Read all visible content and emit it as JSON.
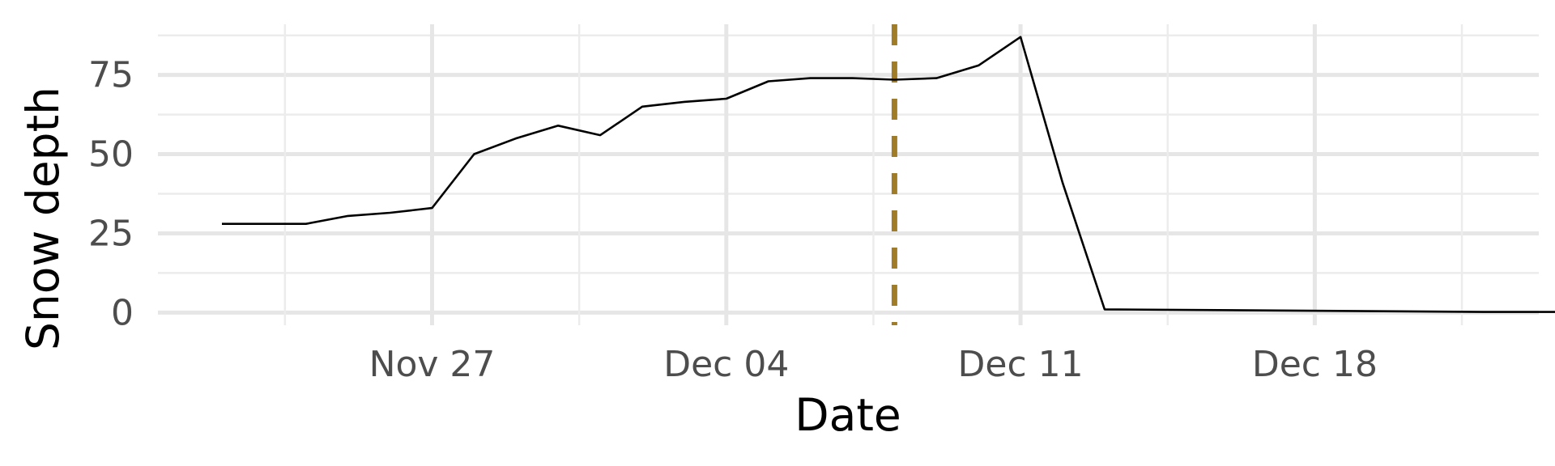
{
  "chart_data": {
    "type": "line",
    "title": "",
    "xlabel": "Date",
    "ylabel": "Snow depth",
    "x_ticks": [
      "Nov 27",
      "Dec 04",
      "Dec 11",
      "Dec 18"
    ],
    "y_ticks": [
      "0",
      "25",
      "50",
      "75"
    ],
    "ylim": [
      -4,
      91
    ],
    "xlim": [
      "2019-11-22",
      "2019-12-25"
    ],
    "grid": true,
    "legend": "none",
    "series": [
      {
        "color": "#000000",
        "points": [
          {
            "x": "2019-11-22",
            "y": 28
          },
          {
            "x": "2019-11-23",
            "y": 28
          },
          {
            "x": "2019-11-24",
            "y": 28
          },
          {
            "x": "2019-11-25",
            "y": 30.5
          },
          {
            "x": "2019-11-26",
            "y": 31.5
          },
          {
            "x": "2019-11-27",
            "y": 33
          },
          {
            "x": "2019-11-28",
            "y": 50
          },
          {
            "x": "2019-11-29",
            "y": 55
          },
          {
            "x": "2019-11-30",
            "y": 59
          },
          {
            "x": "2019-12-01",
            "y": 56
          },
          {
            "x": "2019-12-02",
            "y": 65
          },
          {
            "x": "2019-12-03",
            "y": 66.5
          },
          {
            "x": "2019-12-04",
            "y": 67.5
          },
          {
            "x": "2019-12-05",
            "y": 73
          },
          {
            "x": "2019-12-06",
            "y": 74
          },
          {
            "x": "2019-12-07",
            "y": 74
          },
          {
            "x": "2019-12-08",
            "y": 73.5
          },
          {
            "x": "2019-12-09",
            "y": 74
          },
          {
            "x": "2019-12-10",
            "y": 78
          },
          {
            "x": "2019-12-11",
            "y": 87
          },
          {
            "x": "2019-12-12",
            "y": 41
          },
          {
            "x": "2019-12-13",
            "y": 1
          },
          {
            "x": "2019-12-20",
            "y": 0.4
          },
          {
            "x": "2019-12-22",
            "y": 0.2
          },
          {
            "x": "2019-12-24",
            "y": 0.2
          }
        ]
      }
    ],
    "annotations": [
      {
        "type": "vertical-dashed-line",
        "x": "2019-12-08",
        "color": "#a07c28"
      }
    ]
  }
}
